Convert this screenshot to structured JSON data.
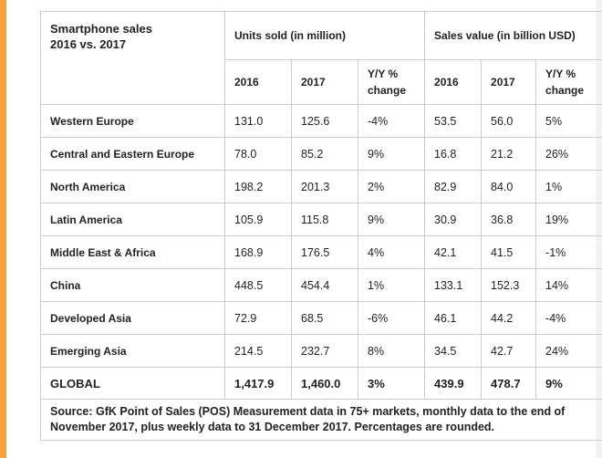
{
  "table": {
    "title_line1": "Smartphone sales",
    "title_line2": "2016 vs. 2017",
    "group_units": "Units sold (in million)",
    "group_value": "Sales value (in billion USD)",
    "subheaders": {
      "y2016": "2016",
      "y2017": "2017",
      "yoy_line1": "Y/Y %",
      "yoy_line2": "change"
    },
    "rows": [
      {
        "region": "Western Europe",
        "u2016": "131.0",
        "u2017": "125.6",
        "uyoy": "-4%",
        "v2016": "53.5",
        "v2017": "56.0",
        "vyoy": "5%"
      },
      {
        "region": "Central and Eastern Europe",
        "u2016": "78.0",
        "u2017": "85.2",
        "uyoy": "9%",
        "v2016": "16.8",
        "v2017": "21.2",
        "vyoy": "26%"
      },
      {
        "region": "North America",
        "u2016": "198.2",
        "u2017": "201.3",
        "uyoy": "2%",
        "v2016": "82.9",
        "v2017": "84.0",
        "vyoy": "1%"
      },
      {
        "region": "Latin America",
        "u2016": "105.9",
        "u2017": "115.8",
        "uyoy": "9%",
        "v2016": "30.9",
        "v2017": "36.8",
        "vyoy": "19%"
      },
      {
        "region": "Middle East & Africa",
        "u2016": "168.9",
        "u2017": "176.5",
        "uyoy": "4%",
        "v2016": "42.1",
        "v2017": "41.5",
        "vyoy": "-1%"
      },
      {
        "region": "China",
        "u2016": "448.5",
        "u2017": "454.4",
        "uyoy": "1%",
        "v2016": "133.1",
        "v2017": "152.3",
        "vyoy": "14%"
      },
      {
        "region": "Developed Asia",
        "u2016": "72.9",
        "u2017": "68.5",
        "uyoy": "-6%",
        "v2016": "46.1",
        "v2017": "44.2",
        "vyoy": "-4%"
      },
      {
        "region": "Emerging Asia",
        "u2016": "214.5",
        "u2017": "232.7",
        "uyoy": "8%",
        "v2016": "34.5",
        "v2017": "42.7",
        "vyoy": "24%"
      }
    ],
    "total": {
      "region": "GLOBAL",
      "u2016": "1,417.9",
      "u2017": "1,460.0",
      "uyoy": "3%",
      "v2016": "439.9",
      "v2017": "478.7",
      "vyoy": "9%"
    },
    "source": "Source: GfK Point of Sales (POS) Measurement data in 75+ markets, monthly data to the end of November 2017, plus weekly data to 31 December 2017. Percentages are rounded."
  }
}
